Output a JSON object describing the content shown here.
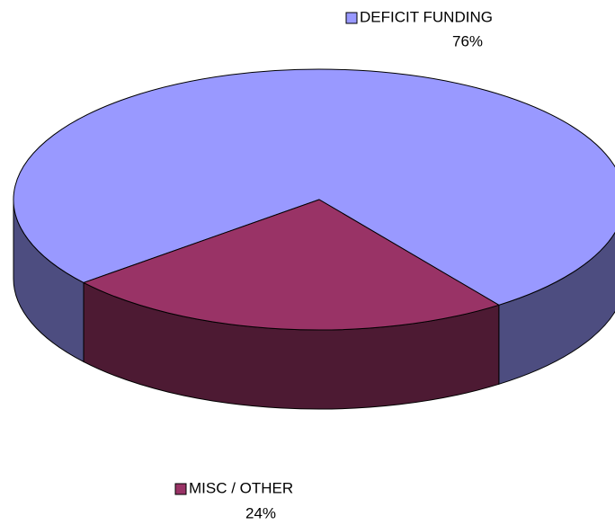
{
  "chart_data": {
    "type": "pie",
    "categories": [
      "DEFICIT FUNDING",
      "MISC  / OTHER"
    ],
    "values": [
      76,
      24
    ],
    "value_labels": [
      "76%",
      "24%"
    ],
    "colors": [
      "#9999ff",
      "#993366"
    ]
  }
}
